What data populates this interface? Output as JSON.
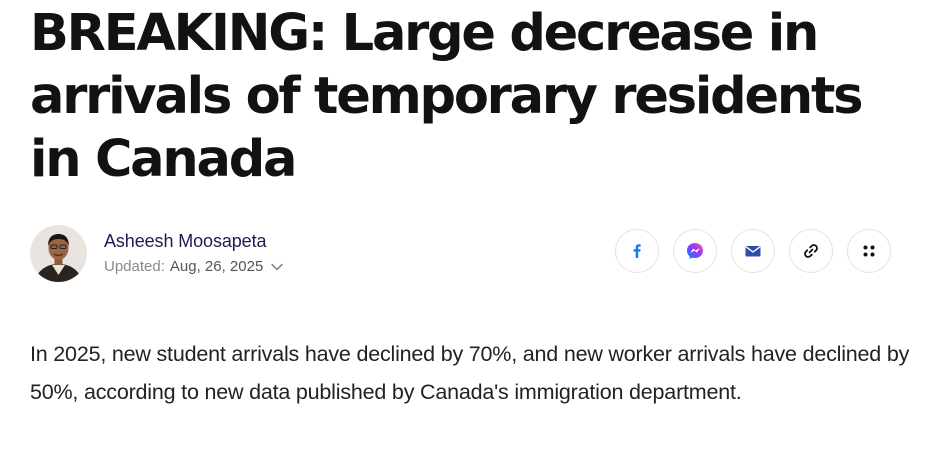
{
  "article": {
    "headline": "BREAKING: Large decrease in arrivals of temporary residents in Canada",
    "lede": "In 2025, new student arrivals have declined by 70%, and new worker arrivals have declined by 50%, according to new data published by Canada's immigration department."
  },
  "byline": {
    "author_name": "Asheesh Moosapeta",
    "updated_label": "Updated:",
    "updated_date": "Aug, 26, 2025"
  },
  "share": {
    "buttons": [
      {
        "icon": "facebook-icon",
        "color": "#1877f2"
      },
      {
        "icon": "messenger-icon",
        "color": "#9b51e0"
      },
      {
        "icon": "email-icon",
        "color": "#2f4fa8"
      },
      {
        "icon": "link-icon",
        "color": "#111111"
      },
      {
        "icon": "more-icon",
        "color": "#111111"
      }
    ]
  }
}
